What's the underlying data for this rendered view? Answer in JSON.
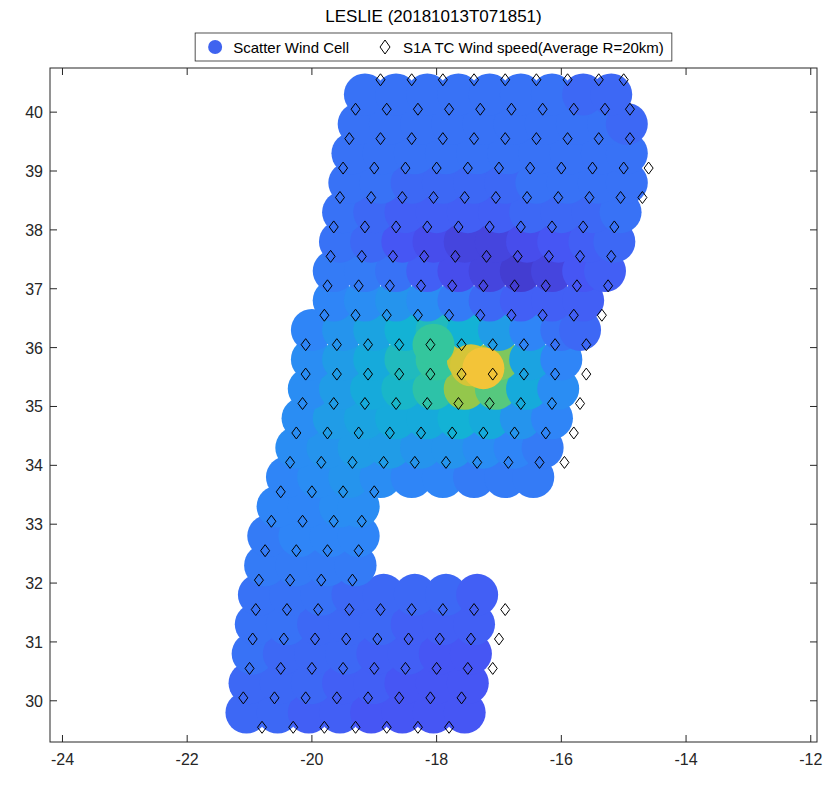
{
  "chart_data": {
    "type": "scatter",
    "title": "LESLIE (20181013T071851)",
    "xlim": [
      -24.2,
      -11.9
    ],
    "xticks": [
      -24,
      -22,
      -20,
      -18,
      -16,
      -14,
      -12
    ],
    "ylim": [
      29.3,
      40.75
    ],
    "yticks": [
      30,
      31,
      32,
      33,
      34,
      35,
      36,
      37,
      38,
      39,
      40
    ],
    "grid": false,
    "legend": "top",
    "series": [
      {
        "name": "Scatter Wind Cell",
        "color": "#3f63ef",
        "marker": "circle",
        "wind_speed_range": [
          0,
          45
        ],
        "x": [
          -21.05,
          -20.55,
          -20.05,
          -19.55,
          -19.05,
          -18.55,
          -18.05,
          -17.55,
          -21.0,
          -20.5,
          -20.0,
          -19.5,
          -19.0,
          -18.5,
          -18.0,
          -17.5,
          -20.95,
          -20.45,
          -19.95,
          -19.45,
          -18.95,
          -18.45,
          -17.95,
          -17.45,
          -20.9,
          -20.4,
          -19.9,
          -19.4,
          -18.9,
          -18.4,
          -17.9,
          -17.4,
          -20.85,
          -20.35,
          -19.85,
          -19.35,
          -18.85,
          -18.35,
          -17.85,
          -17.35,
          -20.75,
          -20.25,
          -19.75,
          -19.3,
          -20.7,
          -20.2,
          -19.7,
          -19.25,
          -20.55,
          -20.05,
          -19.55,
          -19.25,
          -20.4,
          -19.9,
          -19.4,
          -18.9,
          -18.4,
          -17.9,
          -17.4,
          -16.9,
          -16.45,
          -20.25,
          -19.75,
          -19.25,
          -18.75,
          -18.25,
          -17.75,
          -17.25,
          -16.75,
          -16.3,
          -20.15,
          -19.65,
          -19.15,
          -18.65,
          -18.15,
          -17.65,
          -17.15,
          -16.65,
          -16.15,
          -20.05,
          -19.55,
          -19.05,
          -18.55,
          -18.05,
          -17.55,
          -17.05,
          -16.55,
          -16.05,
          -20.0,
          -19.5,
          -19.0,
          -18.5,
          -18.0,
          -17.5,
          -17.0,
          -16.5,
          -16.0,
          -20.0,
          -19.5,
          -19.0,
          -18.5,
          -18.0,
          -17.5,
          -17.0,
          -16.5,
          -16.0,
          -15.7,
          -19.65,
          -19.15,
          -18.65,
          -18.15,
          -17.65,
          -17.15,
          -16.65,
          -16.15,
          -15.65,
          -19.65,
          -19.15,
          -18.65,
          -18.15,
          -17.65,
          -17.15,
          -16.65,
          -16.15,
          -15.65,
          -15.3,
          -19.55,
          -19.05,
          -18.55,
          -18.05,
          -17.55,
          -17.05,
          -16.55,
          -16.05,
          -15.55,
          -15.15,
          -19.5,
          -19.0,
          -18.5,
          -18.0,
          -17.5,
          -17.0,
          -16.5,
          -16.0,
          -15.5,
          -15.05,
          -19.4,
          -18.9,
          -18.4,
          -17.9,
          -17.4,
          -16.9,
          -16.4,
          -15.9,
          -15.4,
          -14.95,
          -19.35,
          -18.85,
          -18.35,
          -17.85,
          -17.35,
          -16.85,
          -16.35,
          -15.85,
          -15.35,
          -14.95,
          -19.25,
          -18.75,
          -18.25,
          -17.75,
          -17.25,
          -16.75,
          -16.25,
          -15.75,
          -15.25,
          -14.95,
          -19.15,
          -18.65,
          -18.15,
          -17.65,
          -17.15,
          -16.65,
          -16.15,
          -15.65,
          -15.2,
          -18.05,
          -17.45,
          -17.25
        ],
        "values": [
          29.8,
          29.8,
          29.8,
          29.8,
          29.8,
          29.8,
          29.8,
          29.8,
          30.3,
          30.3,
          30.3,
          30.3,
          30.3,
          30.3,
          30.3,
          30.3,
          30.8,
          30.8,
          30.8,
          30.8,
          30.8,
          30.8,
          30.8,
          30.8,
          31.3,
          31.3,
          31.3,
          31.3,
          31.3,
          31.3,
          31.3,
          31.3,
          31.8,
          31.8,
          31.8,
          31.8,
          31.8,
          31.8,
          31.8,
          31.8,
          32.3,
          32.3,
          32.3,
          32.3,
          32.8,
          32.8,
          32.8,
          32.8,
          33.3,
          33.3,
          33.3,
          33.3,
          33.8,
          33.8,
          33.8,
          33.8,
          33.8,
          33.8,
          33.8,
          33.8,
          33.8,
          34.3,
          34.3,
          34.3,
          34.3,
          34.3,
          34.3,
          34.3,
          34.3,
          34.3,
          34.8,
          34.8,
          34.8,
          34.8,
          34.8,
          34.8,
          34.8,
          34.8,
          34.8,
          35.3,
          35.3,
          35.3,
          35.3,
          35.3,
          35.3,
          35.3,
          35.3,
          35.3,
          35.8,
          35.8,
          35.8,
          35.8,
          35.8,
          35.8,
          35.8,
          35.8,
          35.8,
          36.3,
          36.3,
          36.3,
          36.3,
          36.3,
          36.3,
          36.3,
          36.3,
          36.3,
          36.3,
          36.8,
          36.8,
          36.8,
          36.8,
          36.8,
          36.8,
          36.8,
          36.8,
          36.8,
          37.3,
          37.3,
          37.3,
          37.3,
          37.3,
          37.3,
          37.3,
          37.3,
          37.3,
          37.3,
          37.8,
          37.8,
          37.8,
          37.8,
          37.8,
          37.8,
          37.8,
          37.8,
          37.8,
          37.8,
          38.3,
          38.3,
          38.3,
          38.3,
          38.3,
          38.3,
          38.3,
          38.3,
          38.3,
          38.3,
          38.8,
          38.8,
          38.8,
          38.8,
          38.8,
          38.8,
          38.8,
          38.8,
          38.8,
          38.8,
          39.3,
          39.3,
          39.3,
          39.3,
          39.3,
          39.3,
          39.3,
          39.3,
          39.3,
          39.3,
          39.8,
          39.8,
          39.8,
          39.8,
          39.8,
          39.8,
          39.8,
          39.8,
          39.8,
          39.8,
          40.3,
          40.3,
          40.3,
          40.3,
          40.3,
          40.3,
          40.3,
          40.3,
          40.3,
          36.05,
          35.7,
          35.65
        ],
        "wind_speed": [
          8,
          8,
          7,
          7,
          6,
          6,
          6,
          6,
          8,
          8,
          8,
          7,
          7,
          6,
          6,
          6,
          9,
          8,
          8,
          8,
          7,
          7,
          6,
          6,
          9,
          9,
          8,
          8,
          8,
          7,
          7,
          7,
          9,
          9,
          9,
          8,
          8,
          8,
          8,
          7,
          10,
          10,
          10,
          10,
          10,
          11,
          11,
          11,
          11,
          11,
          12,
          12,
          11,
          12,
          13,
          12,
          11,
          11,
          10,
          10,
          10,
          12,
          13,
          14,
          14,
          13,
          13,
          12,
          11,
          10,
          12,
          14,
          15,
          16,
          16,
          17,
          16,
          13,
          11,
          12,
          14,
          16,
          18,
          21,
          27,
          24,
          16,
          12,
          12,
          14,
          16,
          19,
          22,
          30,
          26,
          15,
          11,
          11,
          13,
          15,
          17,
          19,
          17,
          14,
          11,
          9,
          8,
          11,
          12,
          13,
          12,
          10,
          8,
          7,
          7,
          7,
          10,
          10,
          9,
          7,
          5,
          4,
          3,
          4,
          6,
          7,
          9,
          8,
          6,
          5,
          4,
          4,
          5,
          6,
          7,
          8,
          9,
          8,
          7,
          7,
          7,
          7,
          8,
          8,
          8,
          9,
          9,
          9,
          8,
          8,
          8,
          8,
          9,
          9,
          9,
          9,
          9,
          9,
          9,
          9,
          9,
          9,
          9,
          9,
          9,
          9,
          9,
          9,
          9,
          9,
          9,
          9,
          9,
          9,
          9,
          8,
          9,
          9,
          9,
          9,
          9,
          9,
          9,
          8,
          8,
          22,
          31,
          33
        ]
      },
      {
        "name": "S1A TC Wind speed(Average R=20km)",
        "color": "#000000",
        "marker": "diamond",
        "x": [
          -20.8,
          -20.3,
          -19.8,
          -19.3,
          -18.8,
          -18.3,
          -17.8,
          -21.1,
          -20.6,
          -20.1,
          -19.6,
          -19.1,
          -18.6,
          -18.1,
          -17.6,
          -21.0,
          -20.5,
          -20.0,
          -19.5,
          -19.0,
          -18.5,
          -18.0,
          -17.5,
          -17.1,
          -20.95,
          -20.45,
          -19.95,
          -19.45,
          -18.95,
          -18.45,
          -17.95,
          -17.45,
          -17.0,
          -20.9,
          -20.4,
          -19.9,
          -19.4,
          -18.9,
          -18.4,
          -17.9,
          -17.4,
          -16.9,
          -20.85,
          -20.35,
          -19.85,
          -19.35,
          -20.75,
          -20.25,
          -19.75,
          -19.25,
          -20.65,
          -20.15,
          -19.65,
          -19.2,
          -20.5,
          -20.0,
          -19.5,
          -19.0,
          -20.35,
          -19.85,
          -19.35,
          -18.85,
          -18.35,
          -17.85,
          -17.35,
          -16.85,
          -16.35,
          -15.95,
          -20.25,
          -19.75,
          -19.25,
          -18.75,
          -18.25,
          -17.75,
          -17.25,
          -16.75,
          -16.25,
          -15.8,
          -20.15,
          -19.65,
          -19.15,
          -18.65,
          -18.15,
          -17.65,
          -17.15,
          -16.65,
          -16.15,
          -15.7,
          -20.1,
          -19.6,
          -19.1,
          -18.6,
          -18.1,
          -17.6,
          -17.1,
          -16.6,
          -16.1,
          -15.6,
          -20.1,
          -19.6,
          -19.1,
          -18.6,
          -18.1,
          -17.6,
          -17.1,
          -16.6,
          -16.1,
          -15.6,
          -19.8,
          -19.3,
          -18.8,
          -18.3,
          -17.8,
          -17.3,
          -16.8,
          -16.3,
          -15.8,
          -15.35,
          -19.75,
          -19.25,
          -18.75,
          -18.25,
          -17.75,
          -17.25,
          -16.75,
          -16.25,
          -15.75,
          -15.25,
          -19.7,
          -19.2,
          -18.7,
          -18.2,
          -17.7,
          -17.2,
          -16.7,
          -16.2,
          -15.7,
          -15.2,
          -19.65,
          -19.15,
          -18.65,
          -18.15,
          -17.65,
          -17.15,
          -16.65,
          -16.15,
          -15.65,
          -15.15,
          -19.55,
          -19.05,
          -18.55,
          -18.05,
          -17.55,
          -17.05,
          -16.55,
          -16.05,
          -15.55,
          -15.05,
          -14.7,
          -19.5,
          -19.0,
          -18.5,
          -18.0,
          -17.5,
          -17.0,
          -16.5,
          -16.0,
          -15.5,
          -15.0,
          -14.6,
          -19.4,
          -18.9,
          -18.4,
          -17.9,
          -17.4,
          -16.9,
          -16.4,
          -15.9,
          -15.4,
          -14.9,
          -19.3,
          -18.8,
          -18.3,
          -17.8,
          -17.3,
          -16.8,
          -16.3,
          -15.8,
          -15.3,
          -14.9,
          -18.9,
          -18.4,
          -17.9,
          -17.4,
          -16.9,
          -16.4,
          -15.9,
          -15.4,
          -15.0
        ],
        "values": [
          29.55,
          29.55,
          29.55,
          29.55,
          29.55,
          29.55,
          29.55,
          30.05,
          30.05,
          30.05,
          30.05,
          30.05,
          30.05,
          30.05,
          30.05,
          30.55,
          30.55,
          30.55,
          30.55,
          30.55,
          30.55,
          30.55,
          30.55,
          30.55,
          31.05,
          31.05,
          31.05,
          31.05,
          31.05,
          31.05,
          31.05,
          31.05,
          31.05,
          31.55,
          31.55,
          31.55,
          31.55,
          31.55,
          31.55,
          31.55,
          31.55,
          31.55,
          32.05,
          32.05,
          32.05,
          32.05,
          32.55,
          32.55,
          32.55,
          32.55,
          33.05,
          33.05,
          33.05,
          33.05,
          33.55,
          33.55,
          33.55,
          33.55,
          34.05,
          34.05,
          34.05,
          34.05,
          34.05,
          34.05,
          34.05,
          34.05,
          34.05,
          34.05,
          34.55,
          34.55,
          34.55,
          34.55,
          34.55,
          34.55,
          34.55,
          34.55,
          34.55,
          34.55,
          35.05,
          35.05,
          35.05,
          35.05,
          35.05,
          35.05,
          35.05,
          35.05,
          35.05,
          35.05,
          35.55,
          35.55,
          35.55,
          35.55,
          35.55,
          35.55,
          35.55,
          35.55,
          35.55,
          35.55,
          36.05,
          36.05,
          36.05,
          36.05,
          36.05,
          36.05,
          36.05,
          36.05,
          36.05,
          36.05,
          36.55,
          36.55,
          36.55,
          36.55,
          36.55,
          36.55,
          36.55,
          36.55,
          36.55,
          36.55,
          37.05,
          37.05,
          37.05,
          37.05,
          37.05,
          37.05,
          37.05,
          37.05,
          37.05,
          37.05,
          37.55,
          37.55,
          37.55,
          37.55,
          37.55,
          37.55,
          37.55,
          37.55,
          37.55,
          37.55,
          38.05,
          38.05,
          38.05,
          38.05,
          38.05,
          38.05,
          38.05,
          38.05,
          38.05,
          38.05,
          38.55,
          38.55,
          38.55,
          38.55,
          38.55,
          38.55,
          38.55,
          38.55,
          38.55,
          38.55,
          38.55,
          39.05,
          39.05,
          39.05,
          39.05,
          39.05,
          39.05,
          39.05,
          39.05,
          39.05,
          39.05,
          39.05,
          39.55,
          39.55,
          39.55,
          39.55,
          39.55,
          39.55,
          39.55,
          39.55,
          39.55,
          39.55,
          40.05,
          40.05,
          40.05,
          40.05,
          40.05,
          40.05,
          40.05,
          40.05,
          40.05,
          40.05,
          40.55,
          40.55,
          40.55,
          40.55,
          40.55,
          40.55,
          40.55,
          40.55,
          40.55
        ]
      }
    ]
  }
}
